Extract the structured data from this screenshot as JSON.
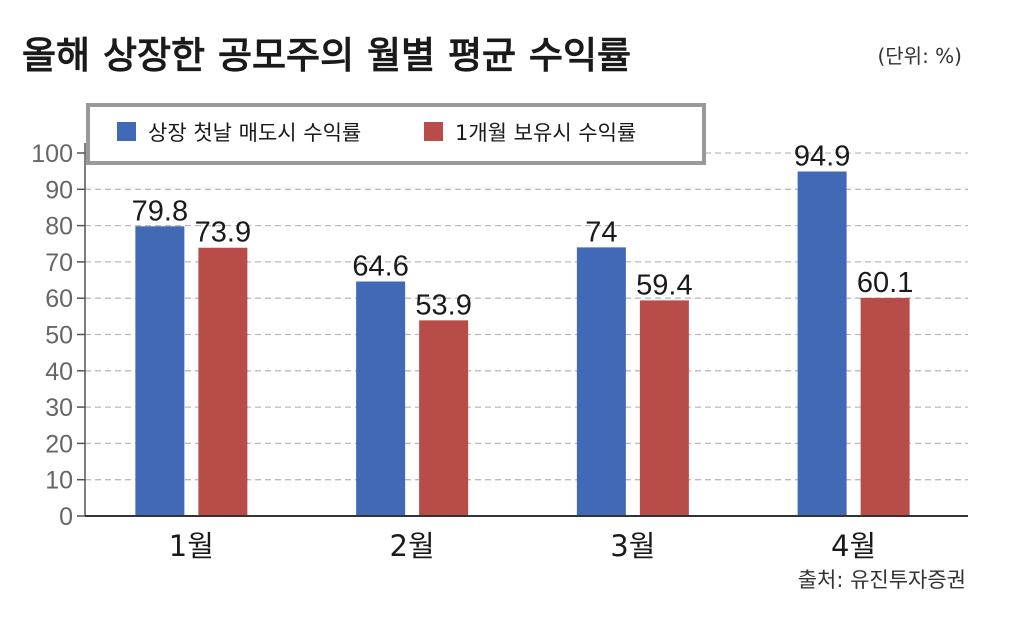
{
  "chart_data": {
    "type": "bar",
    "title": "올해 상장한 공모주의 월별 평균 수익률",
    "unit_label": "(단위: %)",
    "source": "출처: 유진투자증권",
    "categories": [
      "1월",
      "2월",
      "3월",
      "4월"
    ],
    "series": [
      {
        "name": "상장 첫날 매도시 수익률",
        "values": [
          79.8,
          64.6,
          74,
          94.9
        ],
        "value_labels": [
          "79.8",
          "64.6",
          "74",
          "94.9"
        ],
        "color": "#4169b5"
      },
      {
        "name": "1개월 보유시 수익률",
        "values": [
          73.9,
          53.9,
          59.4,
          60.1
        ],
        "value_labels": [
          "73.9",
          "53.9",
          "59.4",
          "60.1"
        ],
        "color": "#b74c49"
      }
    ],
    "ylim": [
      0,
      100
    ],
    "yticks": [
      0,
      10,
      20,
      30,
      40,
      50,
      60,
      70,
      80,
      90,
      100
    ],
    "grid": true,
    "legend_position": "top-left"
  }
}
